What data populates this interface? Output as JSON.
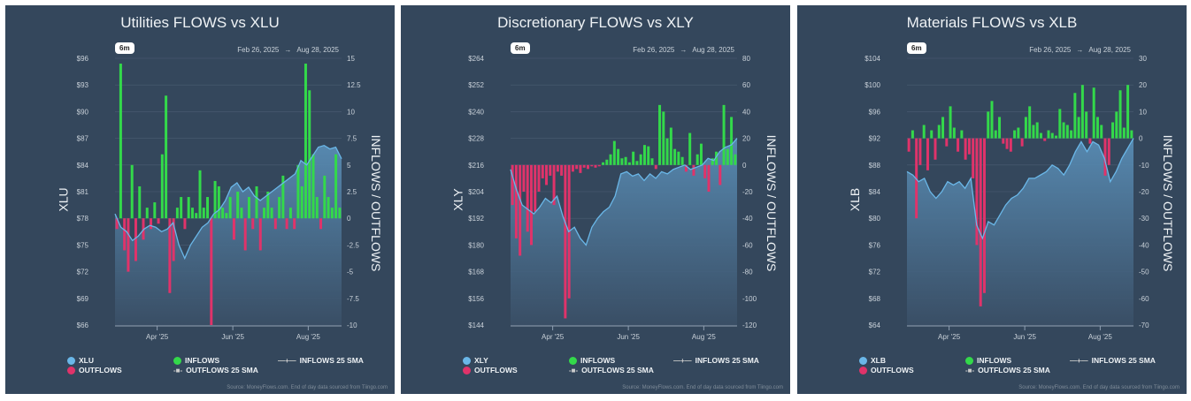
{
  "common": {
    "range_button": "6m",
    "date_from": "Feb 26, 2025",
    "date_sep": "→",
    "date_to": "Aug 28, 2025",
    "right_axis_title": "INFLOWS / OUTFLOWS",
    "legend_inflows": "INFLOWS",
    "legend_outflows": "OUTFLOWS",
    "legend_inflows_sma": "INFLOWS 25 SMA",
    "legend_outflows_sma": "OUTFLOWS 25 SMA",
    "source": "Source: MoneyFlows.com. End of day data sourced from Tiingo.com",
    "x_ticks": [
      "Apr '25",
      "Jun '25",
      "Aug '25"
    ]
  },
  "colors": {
    "price": "#6ab7e8",
    "inflows": "#33d94a",
    "outflows": "#e0336a",
    "panel": "#34475c"
  },
  "chart_data": [
    {
      "type": "bar+area",
      "title": "Utilities FLOWS vs XLU",
      "ylabel": "XLU",
      "y2label": "INFLOWS / OUTFLOWS",
      "ylim": [
        66,
        96
      ],
      "y_ticks": [
        "$96",
        "$93",
        "$90",
        "$87",
        "$84",
        "$81",
        "$78",
        "$75",
        "$72",
        "$69",
        "$66"
      ],
      "y2lim": [
        -10,
        15
      ],
      "y2_ticks": [
        "15",
        "12.5",
        "10",
        "7.5",
        "5",
        "2.5",
        "0",
        "-2.5",
        "-5",
        "-7.5",
        "-10"
      ],
      "xlim": [
        "2025-02-26",
        "2025-08-28"
      ],
      "price_series": {
        "name": "XLU",
        "values": [
          78.5,
          77,
          76.5,
          75.5,
          76,
          76.8,
          77.2,
          77,
          76.5,
          76.8,
          77.5,
          75,
          73.5,
          75,
          76,
          77,
          77.5,
          78.5,
          79,
          80,
          81.5,
          82,
          81,
          81.5,
          80.5,
          80,
          80.5,
          81,
          81.5,
          82,
          82.5,
          83,
          84.5,
          84,
          85,
          86,
          86.2,
          85.8,
          86,
          84.7
        ]
      },
      "flows": [
        -1,
        14.5,
        -3,
        -5,
        5,
        -4,
        3,
        -2,
        1,
        -1,
        1.5,
        -0.5,
        6,
        11.5,
        -7,
        -4,
        1,
        2,
        -1,
        2,
        1,
        0.5,
        4.5,
        1,
        2,
        -10,
        3.5,
        3,
        1,
        0.5,
        2,
        -2,
        2.5,
        1,
        -3,
        2,
        -1,
        3,
        -3,
        1,
        2.5,
        1,
        -1,
        2,
        4,
        -1,
        1,
        -1,
        5,
        3,
        14.5,
        12,
        6,
        2,
        -1,
        4,
        2,
        1,
        6,
        1
      ]
    },
    {
      "type": "bar+area",
      "title": "Discretionary FLOWS vs XLY",
      "ylabel": "XLY",
      "y2label": "INFLOWS / OUTFLOWS",
      "ylim": [
        144,
        264
      ],
      "y_ticks": [
        "$264",
        "$252",
        "$240",
        "$228",
        "$216",
        "$204",
        "$192",
        "$180",
        "$168",
        "$156",
        "$144"
      ],
      "y2lim": [
        -120,
        80
      ],
      "y2_ticks": [
        "80",
        "60",
        "40",
        "20",
        "0",
        "-20",
        "-40",
        "-60",
        "-80",
        "-100",
        "-120"
      ],
      "xlim": [
        "2025-02-26",
        "2025-08-28"
      ],
      "price_series": {
        "name": "XLY",
        "values": [
          214,
          205,
          198,
          196,
          194,
          197,
          201,
          199,
          202,
          193,
          186,
          188,
          183,
          180,
          188,
          192,
          195,
          197,
          202,
          212,
          213,
          211,
          212,
          209,
          212,
          210,
          213,
          212,
          214,
          215,
          216,
          214,
          215,
          216,
          219,
          218,
          222,
          224,
          225,
          228
        ]
      },
      "flows": [
        -30,
        -55,
        -68,
        -20,
        -50,
        -60,
        -35,
        -20,
        -10,
        -15,
        -8,
        -30,
        -5,
        -8,
        -115,
        -100,
        -5,
        -3,
        -6,
        -2,
        -3,
        -1,
        -2,
        -1,
        2,
        4,
        8,
        18,
        12,
        5,
        6,
        2,
        10,
        3,
        8,
        15,
        14,
        5,
        -3,
        45,
        40,
        20,
        28,
        12,
        10,
        6,
        -5,
        24,
        -8,
        8,
        16,
        -10,
        -20,
        5,
        10,
        -15,
        45,
        12,
        36,
        8
      ]
    },
    {
      "type": "bar+area",
      "title": "Materials FLOWS vs XLB",
      "ylabel": "XLB",
      "y2label": "INFLOWS / OUTFLOWS",
      "ylim": [
        64,
        104
      ],
      "y_ticks": [
        "$104",
        "$100",
        "$96",
        "$92",
        "$88",
        "$84",
        "$80",
        "$76",
        "$72",
        "$68",
        "$64"
      ],
      "y2lim": [
        -70,
        30
      ],
      "y2_ticks": [
        "30",
        "20",
        "10",
        "0",
        "-10",
        "-20",
        "-30",
        "-40",
        "-50",
        "-60",
        "-70"
      ],
      "xlim": [
        "2025-02-26",
        "2025-08-28"
      ],
      "price_series": {
        "name": "XLB",
        "values": [
          87,
          86.5,
          85.5,
          86,
          84,
          83,
          84,
          85.5,
          85,
          85.5,
          84.5,
          86,
          79,
          77,
          79.5,
          79,
          80.5,
          82,
          83,
          83.5,
          84.5,
          86,
          86,
          86.5,
          87,
          88,
          87.5,
          86.5,
          88,
          90,
          91.5,
          90,
          91.5,
          91,
          89,
          85.5,
          87,
          89,
          90.5,
          92
        ]
      },
      "flows": [
        -5,
        3,
        -30,
        -10,
        5,
        -12,
        3,
        -8,
        5,
        8,
        -3,
        12,
        4,
        -5,
        3,
        -8,
        -6,
        -15,
        -40,
        -63,
        -58,
        10,
        14,
        3,
        8,
        -2,
        -4,
        -5,
        3,
        4,
        -3,
        8,
        12,
        5,
        6,
        2,
        -1,
        3,
        2,
        1,
        11,
        6,
        5,
        3,
        17,
        8,
        20,
        10,
        -2,
        19,
        8,
        5,
        -14,
        -10,
        6,
        10,
        18,
        4,
        20,
        3
      ]
    }
  ]
}
